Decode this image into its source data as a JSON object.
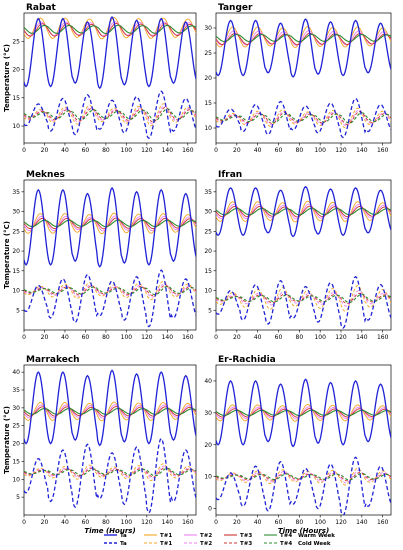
{
  "chart_data": {
    "type": "line",
    "panels": [
      {
        "title": "Rabat",
        "ylim": [
          7,
          30
        ],
        "yticks": [
          10,
          15,
          20,
          25
        ],
        "warm": {
          "ta": [
            23,
            6
          ],
          "t1": [
            27.3,
            1.8
          ],
          "t2": [
            27.2,
            1.2
          ],
          "t3": [
            27.0,
            1.1
          ],
          "t4": [
            27.1,
            0.7
          ]
        },
        "cold": {
          "ta": [
            12,
            3.2
          ],
          "t1": [
            12,
            1.5
          ],
          "t2": [
            12,
            1.2
          ],
          "t3": [
            12,
            1.0
          ],
          "t4": [
            12,
            0.8
          ]
        }
      },
      {
        "title": "Tanger",
        "ylim": [
          7,
          33
        ],
        "yticks": [
          10,
          15,
          20,
          25,
          30
        ],
        "warm": {
          "ta": [
            26,
            5.5
          ],
          "t1": [
            28.2,
            2.0
          ],
          "t2": [
            28.0,
            1.4
          ],
          "t3": [
            27.8,
            1.1
          ],
          "t4": [
            28.0,
            0.7
          ]
        },
        "cold": {
          "ta": [
            12,
            3.0
          ],
          "t1": [
            12,
            1.5
          ],
          "t2": [
            12,
            1.2
          ],
          "t3": [
            12,
            1.0
          ],
          "t4": [
            12,
            0.8
          ]
        }
      },
      {
        "title": "Meknes",
        "ylim": [
          0,
          38
        ],
        "yticks": [
          5,
          10,
          15,
          20,
          25,
          30,
          35
        ],
        "warm": {
          "ta": [
            26,
            9.5
          ],
          "t1": [
            27,
            2.5
          ],
          "t2": [
            27,
            1.8
          ],
          "t3": [
            27,
            1.3
          ],
          "t4": [
            27,
            0.8
          ]
        },
        "cold": {
          "ta": [
            8,
            5.5
          ],
          "t1": [
            10,
            1.8
          ],
          "t2": [
            10,
            1.3
          ],
          "t3": [
            10,
            1.0
          ],
          "t4": [
            10,
            0.8
          ]
        }
      },
      {
        "title": "Ifran",
        "ylim": [
          0,
          38
        ],
        "yticks": [
          5,
          10,
          15,
          20,
          25,
          30,
          35
        ],
        "warm": {
          "ta": [
            30,
            6
          ],
          "t1": [
            30,
            2.5
          ],
          "t2": [
            30,
            1.8
          ],
          "t3": [
            30,
            1.3
          ],
          "t4": [
            30,
            0.8
          ]
        },
        "cold": {
          "ta": [
            7,
            5
          ],
          "t1": [
            8,
            2.5
          ],
          "t2": [
            8,
            1.5
          ],
          "t3": [
            8,
            1.0
          ],
          "t4": [
            8,
            0.8
          ]
        }
      },
      {
        "title": "Marrakech",
        "ylim": [
          0,
          42
        ],
        "yticks": [
          5,
          10,
          15,
          20,
          25,
          30,
          35,
          40
        ],
        "warm": {
          "ta": [
            30,
            10
          ],
          "t1": [
            29,
            2.5
          ],
          "t2": [
            29,
            1.8
          ],
          "t3": [
            29,
            1.3
          ],
          "t4": [
            29,
            0.8
          ]
        },
        "cold": {
          "ta": [
            11,
            8
          ],
          "t1": [
            12,
            1.8
          ],
          "t2": [
            12,
            1.3
          ],
          "t3": [
            12,
            1.0
          ],
          "t4": [
            12,
            0.8
          ]
        }
      },
      {
        "title": "Er-Rachidia",
        "ylim": [
          -2,
          45
        ],
        "yticks": [
          0,
          10,
          20,
          30,
          40
        ],
        "warm": {
          "ta": [
            30,
            10
          ],
          "t1": [
            30,
            2.5
          ],
          "t2": [
            30,
            1.8
          ],
          "t3": [
            30,
            1.3
          ],
          "t4": [
            30,
            0.8
          ]
        },
        "cold": {
          "ta": [
            7,
            7
          ],
          "t1": [
            10,
            2
          ],
          "t2": [
            10,
            1.5
          ],
          "t3": [
            10,
            1.0
          ],
          "t4": [
            10,
            0.8
          ]
        }
      }
    ],
    "x_range": [
      0,
      168
    ],
    "xticks": [
      0,
      20,
      40,
      60,
      80,
      100,
      120,
      140,
      160
    ],
    "xlabel": "Time (Hours)",
    "ylabel": "Temperature (°C)",
    "series": [
      {
        "key": "ta",
        "name": "Ta",
        "color": "#1f22d6"
      },
      {
        "key": "t1",
        "name": "T#1",
        "color": "#f5a623"
      },
      {
        "key": "t2",
        "name": "T#2",
        "color": "#ee82ee"
      },
      {
        "key": "t3",
        "name": "T#3",
        "color": "#cc3333"
      },
      {
        "key": "t4",
        "name": "T#4",
        "color": "#2e8b2e"
      }
    ],
    "legend": {
      "warm_label": "Warm Week",
      "cold_label": "Cold Week",
      "placement": "bottom"
    }
  }
}
